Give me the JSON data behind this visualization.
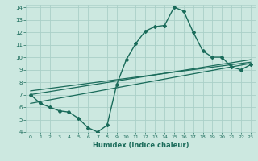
{
  "xlabel": "Humidex (Indice chaleur)",
  "bg_color": "#cce8e0",
  "line_color": "#1a6b5a",
  "grid_color": "#aad0c8",
  "xlim": [
    -0.5,
    23.5
  ],
  "ylim": [
    4,
    14.2
  ],
  "xticks": [
    0,
    1,
    2,
    3,
    4,
    5,
    6,
    7,
    8,
    9,
    10,
    11,
    12,
    13,
    14,
    15,
    16,
    17,
    18,
    19,
    20,
    21,
    22,
    23
  ],
  "yticks": [
    4,
    5,
    6,
    7,
    8,
    9,
    10,
    11,
    12,
    13,
    14
  ],
  "curve1_x": [
    0,
    1,
    2,
    3,
    4,
    5,
    6,
    7,
    8,
    9,
    10,
    11,
    12,
    13,
    14,
    15,
    16,
    17,
    18,
    19,
    20,
    21,
    22,
    23
  ],
  "curve1_y": [
    7.0,
    6.3,
    6.0,
    5.7,
    5.6,
    5.1,
    4.35,
    4.0,
    4.55,
    7.8,
    9.8,
    11.1,
    12.1,
    12.45,
    12.55,
    14.0,
    13.7,
    12.0,
    10.5,
    10.0,
    10.0,
    9.2,
    9.0,
    9.4
  ],
  "line2_x": [
    0,
    23
  ],
  "line2_y": [
    6.3,
    9.5
  ],
  "line3_x": [
    0,
    23
  ],
  "line3_y": [
    7.0,
    9.8
  ],
  "line4_x": [
    0,
    23
  ],
  "line4_y": [
    7.3,
    9.6
  ]
}
